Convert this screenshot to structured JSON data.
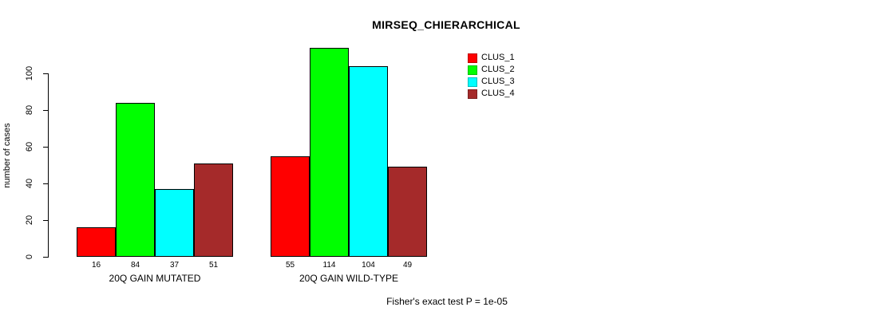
{
  "chart_data": {
    "type": "bar",
    "title": "MIRSEQ_CHIERARCHICAL",
    "ylabel": "number of cases",
    "xlabel": "",
    "categories": [
      "20Q GAIN MUTATED",
      "20Q GAIN WILD-TYPE"
    ],
    "series": [
      {
        "name": "CLUS_1",
        "color": "#FF0000",
        "values": [
          16,
          55
        ]
      },
      {
        "name": "CLUS_2",
        "color": "#00FF00",
        "values": [
          84,
          114
        ]
      },
      {
        "name": "CLUS_3",
        "color": "#00FFFF",
        "values": [
          37,
          104
        ]
      },
      {
        "name": "CLUS_4",
        "color": "#A52A2A",
        "values": [
          51,
          49
        ]
      }
    ],
    "yticks": [
      0,
      20,
      40,
      60,
      80,
      100
    ],
    "ylim": [
      0,
      115
    ],
    "grid": false,
    "legend_position": "top-right",
    "bar_border_color": "#000000",
    "annotation": "Fisher's exact test P = 1e-05"
  }
}
